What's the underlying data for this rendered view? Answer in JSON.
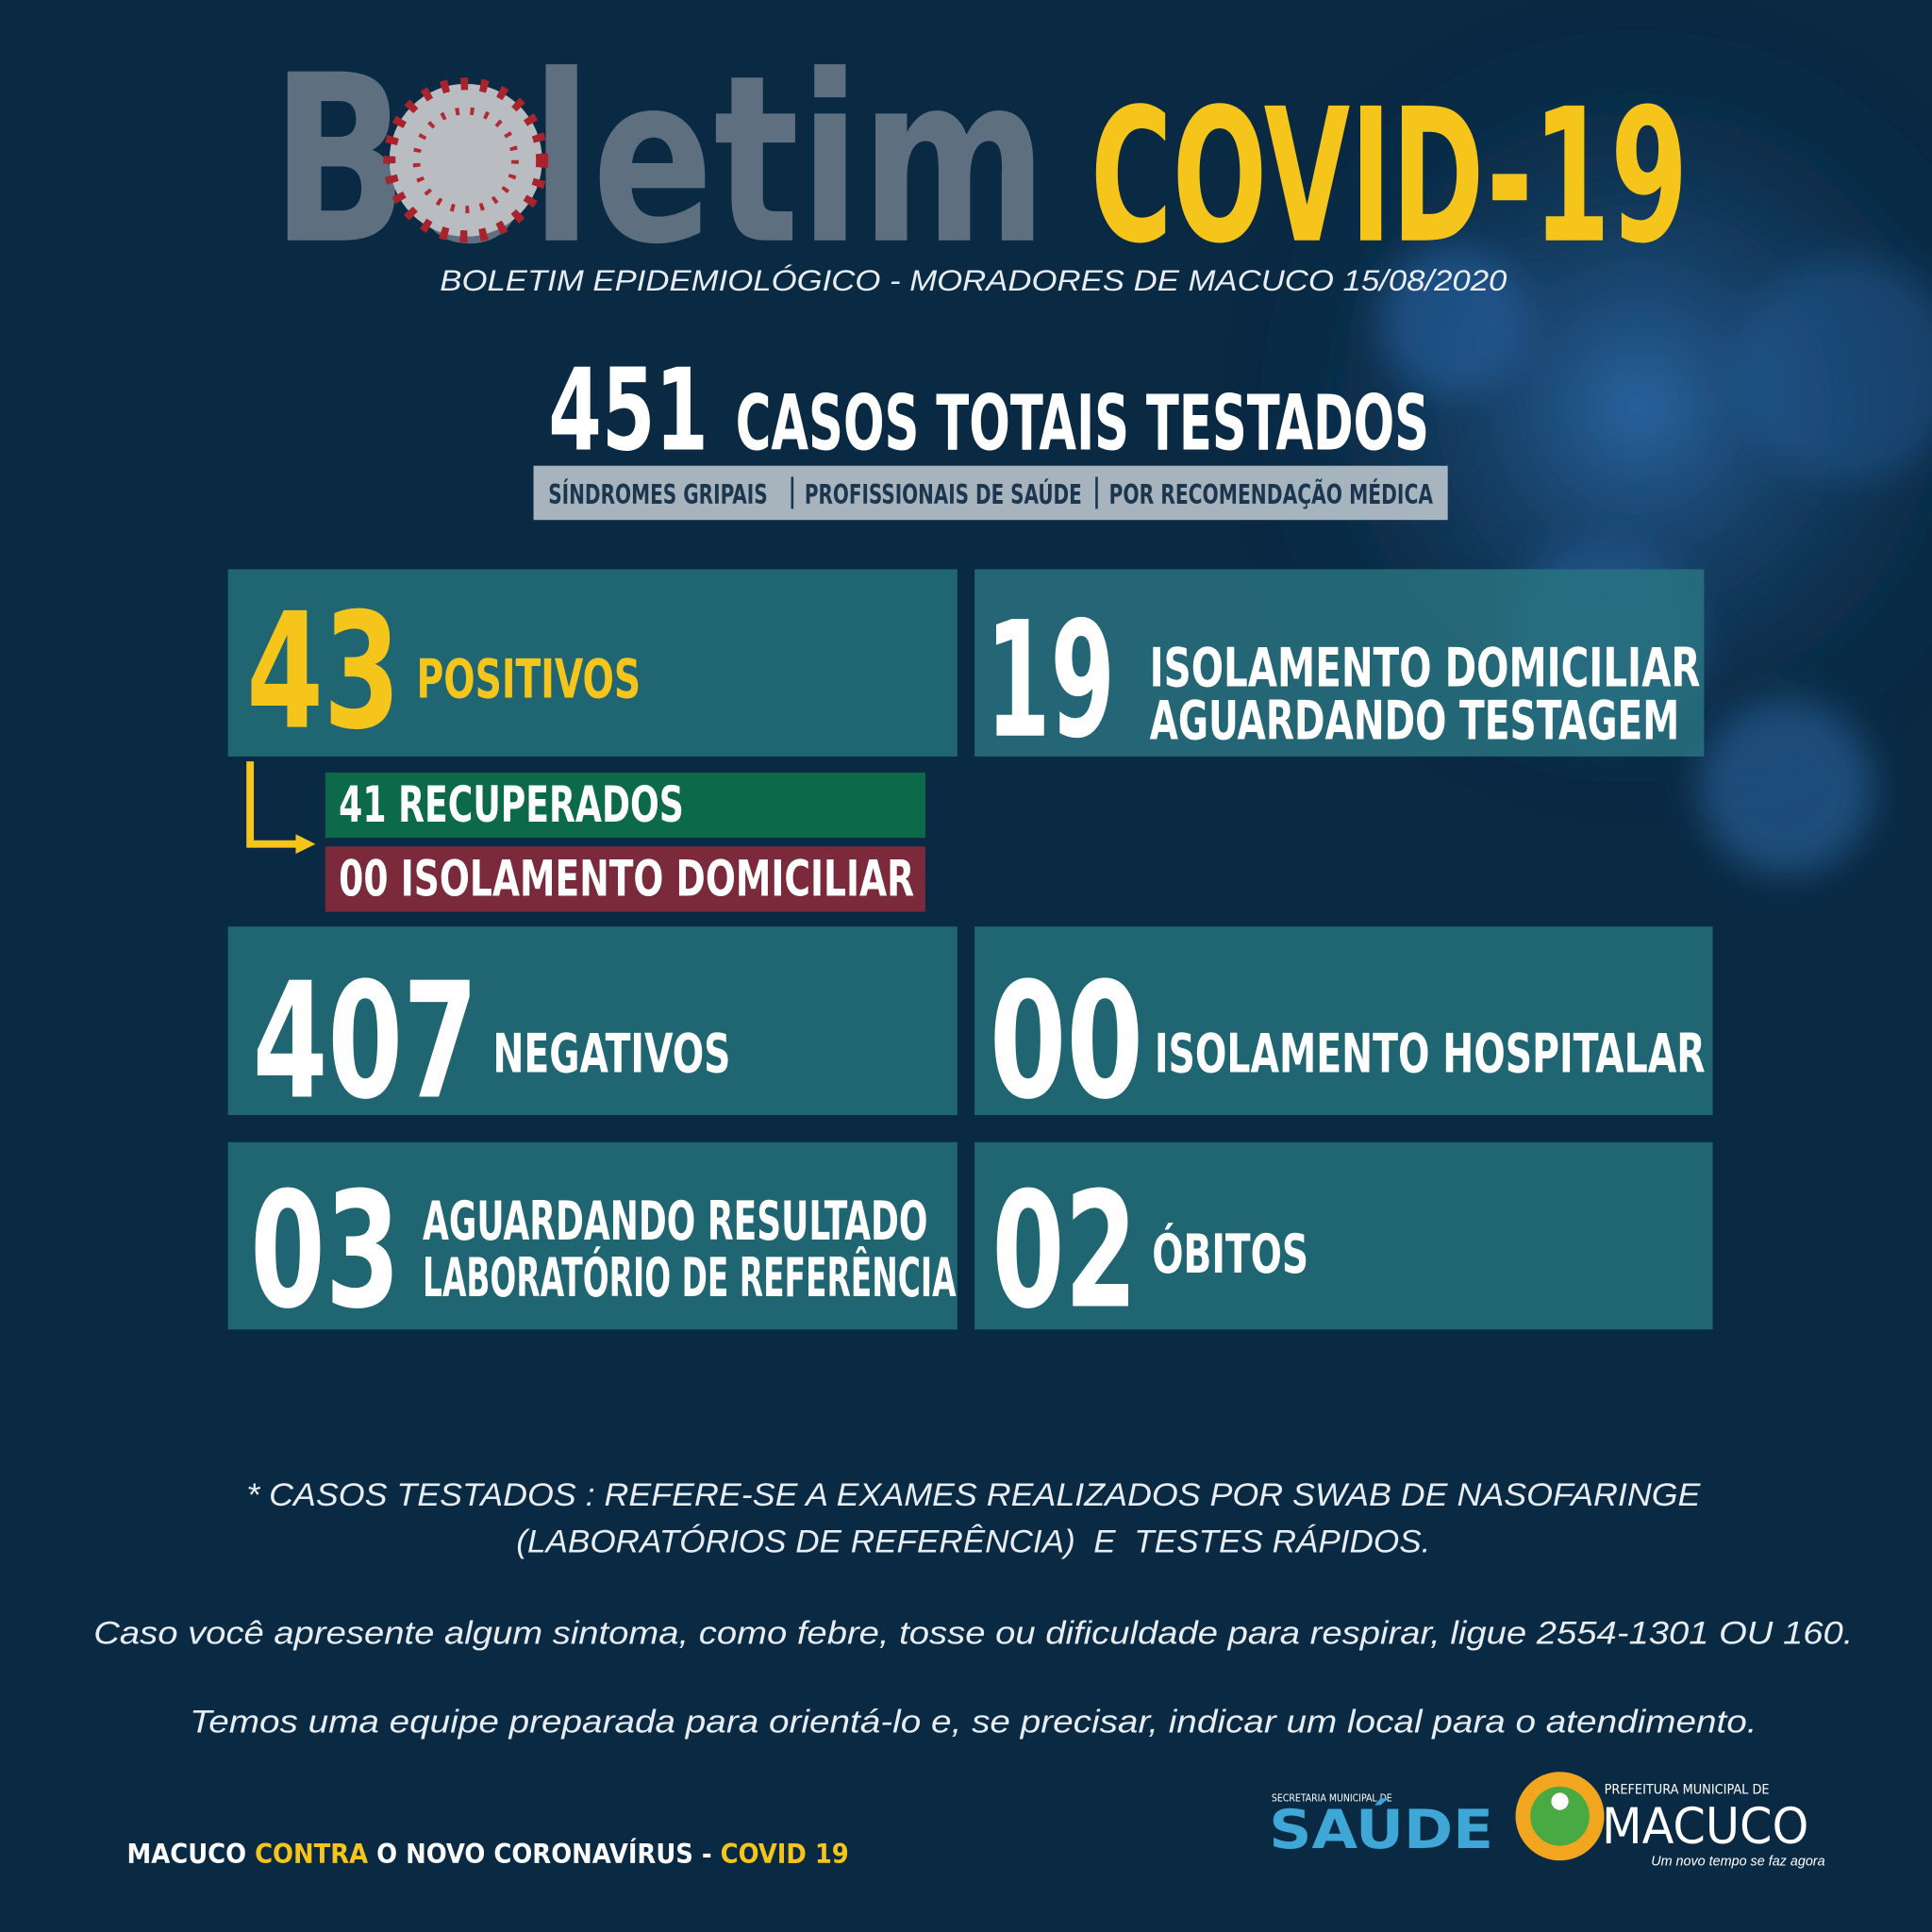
{
  "header": {
    "title": "Boletim",
    "title_highlight": "COVID-19",
    "subtitle": "BOLETIM EPIDEMIOLÓGICO - MORADORES DE MACUCO 15/08/2020"
  },
  "total": {
    "number": "451",
    "label": "CASOS TOTAIS TESTADOS",
    "criteria": [
      "SÍNDROMES GRIPAIS",
      "PROFISSIONAIS DE SAÚDE",
      "POR RECOMENDAÇÃO MÉDICA"
    ]
  },
  "cards": [
    {
      "number": "43",
      "label": [
        "POSITIVOS"
      ]
    },
    {
      "number": "19",
      "label": [
        "ISOLAMENTO DOMICILIAR",
        "AGUARDANDO TESTAGEM"
      ]
    },
    {
      "number": "407",
      "label": [
        "NEGATIVOS"
      ]
    },
    {
      "number": "00",
      "label": [
        "ISOLAMENTO HOSPITALAR"
      ]
    },
    {
      "number": "03",
      "label": [
        "AGUARDANDO RESULTADO",
        "LABORATÓRIO DE REFERÊNCIA"
      ]
    },
    {
      "number": "02",
      "label": [
        "ÓBITOS"
      ]
    }
  ],
  "positive_breakdown": [
    "41 RECUPERADOS",
    "00 ISOLAMENTO DOMICILIAR"
  ],
  "notes": [
    "* CASOS TESTADOS : REFERE-SE A EXAMES REALIZADOS POR SWAB DE NASOFARINGE",
    "(LABORATÓRIOS DE REFERÊNCIA)  E  TESTES RÁPIDOS.",
    "Caso você apresente algum sintoma, como febre, tosse ou dificuldade para respirar, ligue 2554-1301 OU 160.",
    "Temos uma equipe preparada para orientá-lo e, se precisar, indicar um local para o atendimento."
  ],
  "footer": {
    "slogan": [
      "MACUCO",
      "CONTRA",
      "O NOVO CORONAVÍRUS -",
      "COVID 19"
    ],
    "logos": {
      "saude_caption": "SECRETARIA MUNICIPAL DE",
      "saude": "SAÚDE",
      "prefeitura_caption": "PREFEITURA MUNICIPAL DE",
      "prefeitura": "MACUCO",
      "motto": "Um novo tempo se faz agora"
    }
  }
}
